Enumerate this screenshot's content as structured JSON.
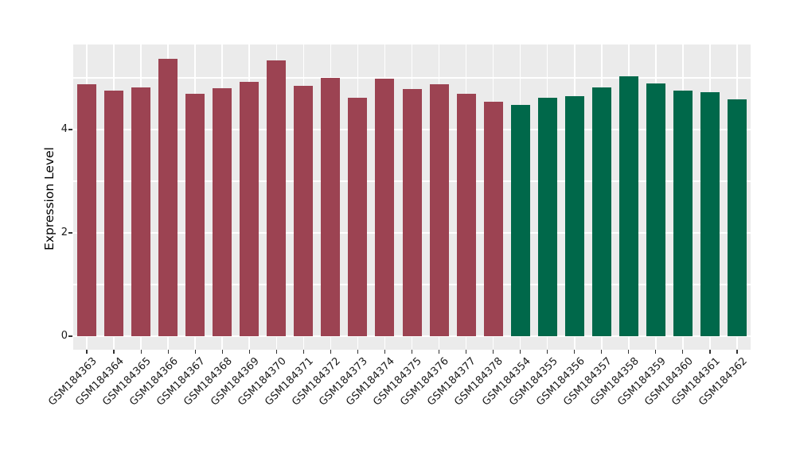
{
  "figure": {
    "background": "#FFFFFF",
    "panel_background": "#EBEBEB",
    "grid_color": "#FFFFFF",
    "tick_color": "#333333",
    "axis_text_color": "#1A1A1A"
  },
  "chart_data": {
    "type": "bar",
    "title": "",
    "xlabel": "",
    "ylabel": "Expression Level",
    "ylim": [
      -0.26,
      5.65
    ],
    "yticks": [
      0,
      2,
      4
    ],
    "yticks_minor": [
      1,
      3,
      5
    ],
    "grid": "white major and minor gridlines on gray panel, vertical gridline at each category",
    "legend_position": "none",
    "x_tick_label_angle": 45,
    "categories": [
      "GSM184363",
      "GSM184364",
      "GSM184365",
      "GSM184366",
      "GSM184367",
      "GSM184368",
      "GSM184369",
      "GSM184370",
      "GSM184371",
      "GSM184372",
      "GSM184373",
      "GSM184374",
      "GSM184375",
      "GSM184376",
      "GSM184377",
      "GSM184378",
      "GSM184354",
      "GSM184355",
      "GSM184356",
      "GSM184357",
      "GSM184358",
      "GSM184359",
      "GSM184360",
      "GSM184361",
      "GSM184362"
    ],
    "values": [
      4.88,
      4.75,
      4.81,
      5.37,
      4.69,
      4.8,
      4.93,
      5.34,
      4.84,
      5.0,
      4.62,
      4.98,
      4.78,
      4.88,
      4.69,
      4.54,
      4.47,
      4.62,
      4.65,
      4.82,
      5.03,
      4.89,
      4.75,
      4.72,
      4.59
    ],
    "bar_groups": [
      "maroon",
      "maroon",
      "maroon",
      "maroon",
      "maroon",
      "maroon",
      "maroon",
      "maroon",
      "maroon",
      "maroon",
      "maroon",
      "maroon",
      "maroon",
      "maroon",
      "maroon",
      "maroon",
      "green",
      "green",
      "green",
      "green",
      "green",
      "green",
      "green",
      "green",
      "green"
    ],
    "group_colors": {
      "maroon": "#9C4352",
      "green": "#00684A"
    }
  }
}
